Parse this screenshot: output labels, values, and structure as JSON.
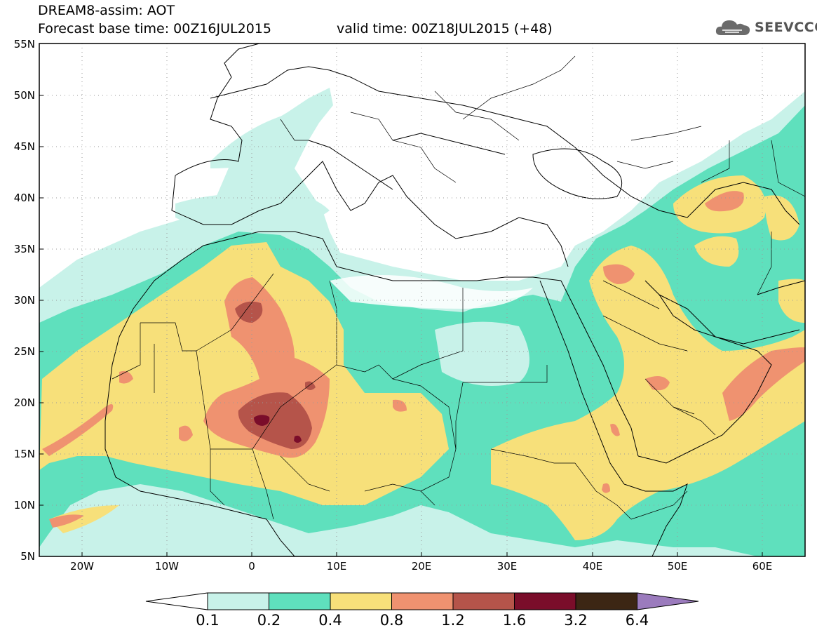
{
  "header": {
    "title_line1": "DREAM8-assim: AOT",
    "title_line2": "Forecast base time: 00Z16JUL2015",
    "valid_time": "valid time: 00Z18JUL2015 (+48)"
  },
  "logo": {
    "text": "SEEVCCC",
    "icon": "cloud-icon"
  },
  "map": {
    "lat_labels": [
      "55N",
      "50N",
      "45N",
      "40N",
      "35N",
      "30N",
      "25N",
      "20N",
      "15N",
      "10N",
      "5N"
    ],
    "lon_labels": [
      "20W",
      "10W",
      "0",
      "10E",
      "20E",
      "30E",
      "40E",
      "50E",
      "60E"
    ]
  },
  "colorbar": {
    "colors": [
      "#c8f2e9",
      "#5fe0bd",
      "#f7e07a",
      "#ef9270",
      "#b5544a",
      "#7a0d2a",
      "#3c2614",
      "#9b7bbd"
    ],
    "low_end_color": "#ffffff",
    "labels": [
      "0.1",
      "0.2",
      "0.4",
      "0.8",
      "1.2",
      "1.6",
      "3.2",
      "6.4"
    ]
  }
}
